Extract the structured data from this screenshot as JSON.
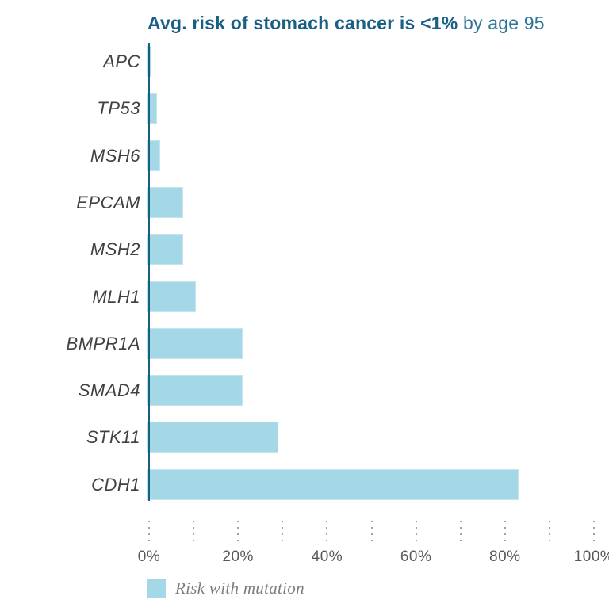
{
  "title": {
    "bold": "Avg. risk of stomach cancer is <1%",
    "light": " by age 95"
  },
  "legend": {
    "label": "Risk with mutation"
  },
  "chart_data": {
    "type": "bar",
    "orientation": "horizontal",
    "title": "Avg. risk of stomach cancer is <1% by age 95",
    "categories": [
      "APC",
      "TP53",
      "MSH6",
      "EPCAM",
      "MSH2",
      "MLH1",
      "BMPR1A",
      "SMAD4",
      "STK11",
      "CDH1"
    ],
    "series": [
      {
        "name": "Risk with mutation",
        "values": [
          0.5,
          1.7,
          2.5,
          7.6,
          7.7,
          10.5,
          21,
          21,
          29,
          83
        ]
      }
    ],
    "xlabel": "",
    "ylabel": "",
    "xlim": [
      0,
      100
    ],
    "x_tick_step_minor": 10,
    "x_tick_labels": [
      "0%",
      "20%",
      "40%",
      "60%",
      "80%",
      "100%"
    ],
    "grid": "off",
    "tick_style": "dotted-vertical-marks",
    "legend_position": "bottom-left"
  },
  "colors": {
    "bar": "#a4d8e6",
    "axis": "#14607e",
    "title_bold": "#1a5f84",
    "title_light": "#2e7497",
    "gene_label": "#414042",
    "tick_label": "#58595b",
    "tick_dot": "#a2a2a2",
    "legend_text": "#7a7d80"
  }
}
